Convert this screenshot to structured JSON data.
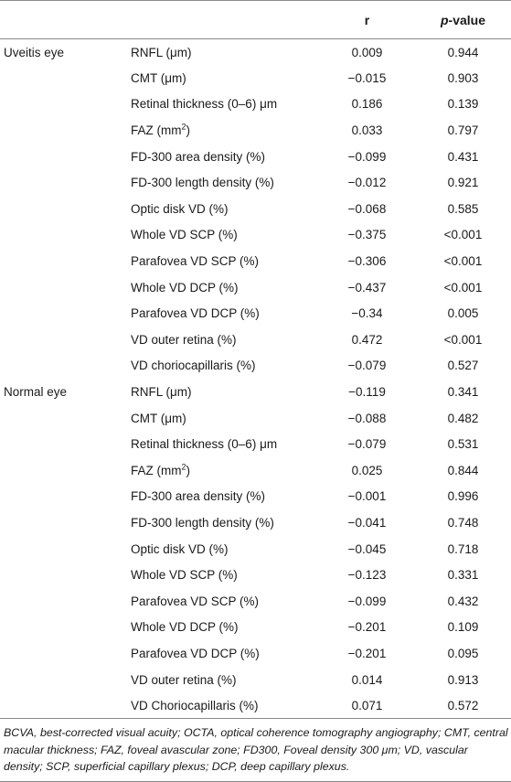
{
  "header": {
    "col1": "",
    "col2": "",
    "r": "r",
    "p_italic": "p",
    "p_rest": "-value"
  },
  "groups": [
    {
      "label": "Uveitis eye",
      "rows": [
        {
          "var": "RNFL (μm)",
          "r": "0.009",
          "p": "0.944"
        },
        {
          "var": "CMT (μm)",
          "r": "−0.015",
          "p": "0.903"
        },
        {
          "var": "Retinal thickness (0–6) μm",
          "r": "0.186",
          "p": "0.139"
        },
        {
          "var": "FAZ (mm",
          "sup": "2",
          "var_tail": ")",
          "r": "0.033",
          "p": "0.797"
        },
        {
          "var": "FD-300 area density (%)",
          "r": "−0.099",
          "p": "0.431"
        },
        {
          "var": "FD-300 length density (%)",
          "r": "−0.012",
          "p": "0.921"
        },
        {
          "var": "Optic disk VD (%)",
          "r": "−0.068",
          "p": "0.585"
        },
        {
          "var": "Whole VD SCP (%)",
          "r": "−0.375",
          "p": "<0.001"
        },
        {
          "var": "Parafovea VD SCP (%)",
          "r": "−0.306",
          "p": "<0.001"
        },
        {
          "var": "Whole VD DCP (%)",
          "r": "−0.437",
          "p": "<0.001"
        },
        {
          "var": "Parafovea VD DCP (%)",
          "r": "−0.34",
          "p": "0.005"
        },
        {
          "var": "VD outer retina (%)",
          "r": "0.472",
          "p": "<0.001"
        },
        {
          "var": "VD choriocapillaris (%)",
          "r": "−0.079",
          "p": "0.527"
        }
      ]
    },
    {
      "label": "Normal eye",
      "rows": [
        {
          "var": "RNFL (μm)",
          "r": "−0.119",
          "p": "0.341"
        },
        {
          "var": "CMT (μm)",
          "r": "−0.088",
          "p": "0.482"
        },
        {
          "var": "Retinal thickness (0–6) μm",
          "r": "−0.079",
          "p": "0.531"
        },
        {
          "var": "FAZ (mm",
          "sup": "2",
          "var_tail": ")",
          "r": "0.025",
          "p": "0.844"
        },
        {
          "var": "FD-300 area density (%)",
          "r": "−0.001",
          "p": "0.996"
        },
        {
          "var": "FD-300 length density (%)",
          "r": "−0.041",
          "p": "0.748"
        },
        {
          "var": "Optic disk VD (%)",
          "r": "−0.045",
          "p": "0.718"
        },
        {
          "var": "Whole VD SCP (%)",
          "r": "−0.123",
          "p": "0.331"
        },
        {
          "var": "Parafovea VD SCP (%)",
          "r": "−0.099",
          "p": "0.432"
        },
        {
          "var": "Whole VD DCP (%)",
          "r": "−0.201",
          "p": "0.109"
        },
        {
          "var": "Parafovea VD DCP (%)",
          "r": "−0.201",
          "p": "0.095"
        },
        {
          "var": "VD outer retina (%)",
          "r": "0.014",
          "p": "0.913"
        },
        {
          "var": "VD Choriocapillaris (%)",
          "r": "0.071",
          "p": "0.572"
        }
      ]
    }
  ],
  "footnote": "BCVA, best-corrected visual acuity; OCTA, optical coherence tomography angiography; CMT, central macular thickness; FAZ, foveal avascular zone; FD300, Foveal density 300 μm; VD, vascular density; SCP, superficial capillary plexus; DCP, deep capillary plexus."
}
